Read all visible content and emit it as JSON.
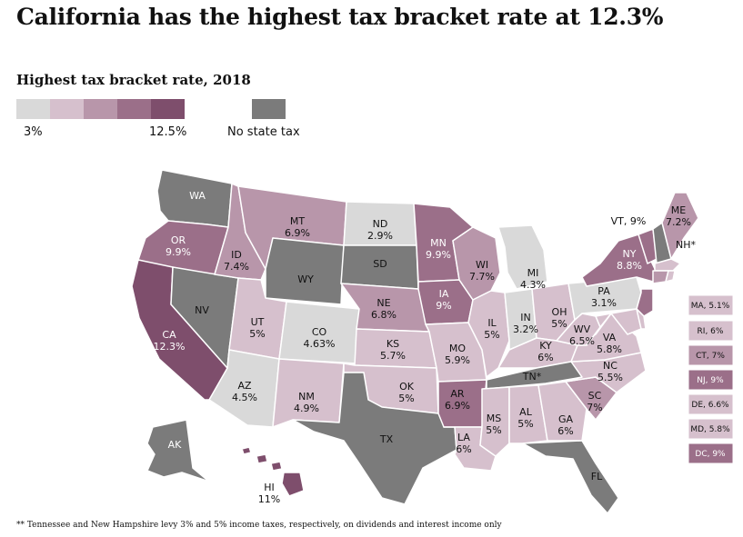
{
  "title": "California has the highest tax bracket rate at 12.3%",
  "legend": {
    "title": "Highest tax bracket rate, 2018",
    "min_label": "3%",
    "max_label": "12.5%",
    "no_tax_label": "No state tax",
    "scale_colors": [
      "#d9d9d9",
      "#d6c0cd",
      "#b896aa",
      "#9b6f89",
      "#7e4e6c"
    ],
    "no_tax_color": "#7b7b7b"
  },
  "states": {
    "WA": {
      "name": "WA",
      "value": ""
    },
    "OR": {
      "name": "OR",
      "value": "9.9%"
    },
    "CA": {
      "name": "CA",
      "value": "12.3%"
    },
    "ID": {
      "name": "ID",
      "value": "7.4%"
    },
    "NV": {
      "name": "NV",
      "value": ""
    },
    "MT": {
      "name": "MT",
      "value": "6.9%"
    },
    "WY": {
      "name": "WY",
      "value": ""
    },
    "UT": {
      "name": "UT",
      "value": "5%"
    },
    "AZ": {
      "name": "AZ",
      "value": "4.5%"
    },
    "CO": {
      "name": "CO",
      "value": "4.63%"
    },
    "NM": {
      "name": "NM",
      "value": "4.9%"
    },
    "ND": {
      "name": "ND",
      "value": "2.9%"
    },
    "SD": {
      "name": "SD",
      "value": ""
    },
    "NE": {
      "name": "NE",
      "value": "6.8%"
    },
    "KS": {
      "name": "KS",
      "value": "5.7%"
    },
    "OK": {
      "name": "OK",
      "value": "5%"
    },
    "TX": {
      "name": "TX",
      "value": ""
    },
    "MN": {
      "name": "MN",
      "value": "9.9%"
    },
    "IA": {
      "name": "IA",
      "value": "9%"
    },
    "MO": {
      "name": "MO",
      "value": "5.9%"
    },
    "AR": {
      "name": "AR",
      "value": "6.9%"
    },
    "LA": {
      "name": "LA",
      "value": "6%"
    },
    "WI": {
      "name": "WI",
      "value": "7.7%"
    },
    "IL": {
      "name": "IL",
      "value": "5%"
    },
    "MI": {
      "name": "MI",
      "value": "4.3%"
    },
    "IN": {
      "name": "IN",
      "value": "3.2%"
    },
    "OH": {
      "name": "OH",
      "value": "5%"
    },
    "KY": {
      "name": "KY",
      "value": "6%"
    },
    "TN": {
      "name": "TN*",
      "value": ""
    },
    "MS": {
      "name": "MS",
      "value": "5%"
    },
    "AL": {
      "name": "AL",
      "value": "5%"
    },
    "GA": {
      "name": "GA",
      "value": "6%"
    },
    "FL": {
      "name": "FL",
      "value": ""
    },
    "SC": {
      "name": "SC",
      "value": "7%"
    },
    "NC": {
      "name": "NC",
      "value": "5.5%"
    },
    "VA": {
      "name": "VA",
      "value": "5.8%"
    },
    "WV": {
      "name": "WV",
      "value": "6.5%"
    },
    "PA": {
      "name": "PA",
      "value": "3.1%"
    },
    "NY": {
      "name": "NY",
      "value": "8.8%"
    },
    "VT": {
      "label": "VT, 9%"
    },
    "NH": {
      "label": "NH*"
    },
    "ME": {
      "name": "ME",
      "value": "7.2%"
    },
    "AK": {
      "name": "AK",
      "value": ""
    },
    "HI": {
      "name": "HI",
      "value": "11%"
    }
  },
  "small_states": [
    {
      "label": "MA, 5.1%",
      "color": "#d6c0cd",
      "text_color": "#111111"
    },
    {
      "label": "RI, 6%",
      "color": "#d6c0cd",
      "text_color": "#111111"
    },
    {
      "label": "CT, 7%",
      "color": "#b896aa",
      "text_color": "#111111"
    },
    {
      "label": "NJ, 9%",
      "color": "#9b6f89",
      "text_color": "#ffffff"
    },
    {
      "label": "DE, 6.6%",
      "color": "#d6c0cd",
      "text_color": "#111111"
    },
    {
      "label": "MD, 5.8%",
      "color": "#d6c0cd",
      "text_color": "#111111"
    },
    {
      "label": "DC, 9%",
      "color": "#9b6f89",
      "text_color": "#ffffff"
    }
  ],
  "footnote": "** Tennessee and New Hampshire levy 3% and 5% income taxes, respectively, on dividends and interest income only"
}
